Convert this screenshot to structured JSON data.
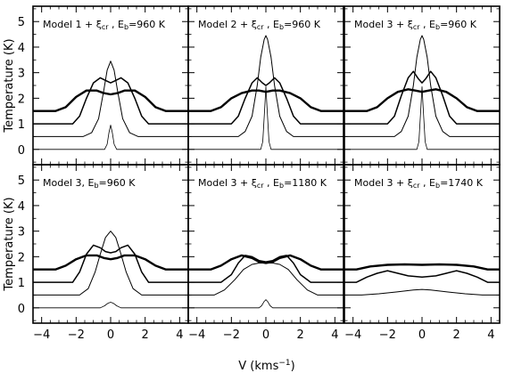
{
  "chart_data": {
    "type": "line",
    "layout": "2x3 grid, shared axes",
    "xlabel": "V (kms",
    "xlabel_sup": "−1",
    "xlabel_end": ")",
    "ylabel": "Temperature (K)",
    "xlim": [
      -4.5,
      4.5
    ],
    "ylim": [
      -0.6,
      5.6
    ],
    "xticks": [
      -4,
      -2,
      0,
      2,
      4
    ],
    "yticks": [
      0,
      1,
      2,
      3,
      4,
      5
    ],
    "grid": false,
    "panels": [
      {
        "title": "Model 1 + ξ",
        "title_sub": "cr",
        "title_end": " , E",
        "title_sub2": "b",
        "title_tail": "=960 K",
        "series": [
          {
            "line": "thin",
            "x": [
              -4.5,
              -1.6,
              -1.1,
              -0.7,
              -0.4,
              -0.2,
              0,
              0.2,
              0.4,
              0.7,
              1.1,
              1.6,
              4.5
            ],
            "y": [
              0.5,
              0.5,
              0.65,
              1.2,
              2.3,
              3.1,
              3.45,
              3.1,
              2.3,
              1.2,
              0.65,
              0.5,
              0.5
            ]
          },
          {
            "line": "medium",
            "x": [
              -4.5,
              -2.2,
              -1.8,
              -1.4,
              -1.0,
              -0.6,
              -0.3,
              0,
              0.3,
              0.6,
              1.0,
              1.4,
              1.8,
              2.2,
              4.5
            ],
            "y": [
              1.0,
              1.0,
              1.3,
              2.0,
              2.6,
              2.8,
              2.7,
              2.6,
              2.7,
              2.8,
              2.6,
              2.0,
              1.3,
              1.0,
              1.0
            ]
          },
          {
            "line": "thick",
            "x": [
              -4.5,
              -3.2,
              -2.6,
              -2.0,
              -1.4,
              -0.8,
              -0.4,
              0,
              0.4,
              0.8,
              1.4,
              2.0,
              2.6,
              3.2,
              4.5
            ],
            "y": [
              1.5,
              1.5,
              1.65,
              2.05,
              2.3,
              2.3,
              2.2,
              2.15,
              2.2,
              2.3,
              2.3,
              2.05,
              1.65,
              1.5,
              1.5
            ]
          },
          {
            "line": "hair",
            "x": [
              -4.5,
              -0.35,
              -0.2,
              -0.1,
              0,
              0.1,
              0.2,
              0.35,
              4.5
            ],
            "y": [
              0,
              0,
              0.2,
              0.65,
              0.95,
              0.65,
              0.2,
              0,
              0
            ]
          }
        ]
      },
      {
        "title": "Model 2 + ξ",
        "title_sub": "cr",
        "title_end": " , E",
        "title_sub2": "b",
        "title_tail": "=960 K",
        "series": [
          {
            "line": "thin",
            "x": [
              -4.5,
              -1.6,
              -1.2,
              -0.8,
              -0.5,
              -0.3,
              -0.1,
              0,
              0.1,
              0.3,
              0.5,
              0.8,
              1.2,
              1.6,
              4.5
            ],
            "y": [
              0.5,
              0.5,
              0.7,
              1.3,
              2.5,
              3.6,
              4.3,
              4.45,
              4.3,
              3.6,
              2.5,
              1.3,
              0.7,
              0.5,
              0.5
            ]
          },
          {
            "line": "medium",
            "x": [
              -4.5,
              -2.0,
              -1.6,
              -1.2,
              -0.8,
              -0.5,
              -0.2,
              0,
              0.2,
              0.5,
              0.8,
              1.2,
              1.6,
              2.0,
              4.5
            ],
            "y": [
              1.0,
              1.0,
              1.3,
              2.0,
              2.6,
              2.8,
              2.6,
              2.5,
              2.6,
              2.8,
              2.6,
              2.0,
              1.3,
              1.0,
              1.0
            ]
          },
          {
            "line": "thick",
            "x": [
              -4.5,
              -3.2,
              -2.6,
              -2.0,
              -1.4,
              -0.8,
              -0.4,
              0,
              0.4,
              0.8,
              1.4,
              2.0,
              2.6,
              3.2,
              4.5
            ],
            "y": [
              1.5,
              1.5,
              1.65,
              2.0,
              2.2,
              2.3,
              2.3,
              2.25,
              2.3,
              2.3,
              2.2,
              2.0,
              1.65,
              1.5,
              1.5
            ]
          },
          {
            "line": "hair",
            "x": [
              -4.5,
              -0.3,
              -0.18,
              -0.08,
              0,
              0.08,
              0.18,
              0.3,
              4.5
            ],
            "y": [
              0,
              0,
              0.3,
              1.5,
              2.45,
              1.5,
              0.3,
              0,
              0
            ]
          }
        ]
      },
      {
        "title": "Model 3 + ξ",
        "title_sub": "cr",
        "title_end": " , E",
        "title_sub2": "b",
        "title_tail": "=960 K",
        "series": [
          {
            "line": "thin",
            "x": [
              -4.5,
              -1.6,
              -1.2,
              -0.8,
              -0.5,
              -0.3,
              -0.1,
              0,
              0.1,
              0.3,
              0.5,
              0.8,
              1.2,
              1.6,
              4.5
            ],
            "y": [
              0.5,
              0.5,
              0.7,
              1.3,
              2.5,
              3.6,
              4.3,
              4.45,
              4.3,
              3.6,
              2.5,
              1.3,
              0.7,
              0.5,
              0.5
            ]
          },
          {
            "line": "medium",
            "x": [
              -4.5,
              -2.0,
              -1.6,
              -1.2,
              -0.8,
              -0.5,
              -0.2,
              0,
              0.2,
              0.5,
              0.8,
              1.2,
              1.6,
              2.0,
              4.5
            ],
            "y": [
              1.0,
              1.0,
              1.3,
              2.1,
              2.8,
              3.05,
              2.75,
              2.6,
              2.75,
              3.05,
              2.8,
              2.1,
              1.3,
              1.0,
              1.0
            ]
          },
          {
            "line": "thick",
            "x": [
              -4.5,
              -3.2,
              -2.6,
              -2.0,
              -1.4,
              -0.8,
              -0.4,
              0,
              0.4,
              0.8,
              1.4,
              2.0,
              2.6,
              3.2,
              4.5
            ],
            "y": [
              1.5,
              1.5,
              1.65,
              2.0,
              2.25,
              2.35,
              2.3,
              2.25,
              2.3,
              2.35,
              2.25,
              2.0,
              1.65,
              1.5,
              1.5
            ]
          },
          {
            "line": "hair",
            "x": [
              -4.5,
              -0.3,
              -0.18,
              -0.08,
              0,
              0.08,
              0.18,
              0.3,
              4.5
            ],
            "y": [
              0,
              0,
              0.3,
              1.5,
              2.45,
              1.5,
              0.3,
              0,
              0
            ]
          }
        ]
      },
      {
        "title": "Model 3, E",
        "title_sub": "",
        "title_end": "",
        "title_sub2": "b",
        "title_tail": "=960 K",
        "series": [
          {
            "line": "thin",
            "x": [
              -4.5,
              -1.8,
              -1.3,
              -0.9,
              -0.6,
              -0.3,
              0,
              0.3,
              0.6,
              0.9,
              1.3,
              1.8,
              4.5
            ],
            "y": [
              0.5,
              0.5,
              0.75,
              1.4,
              2.1,
              2.75,
              3.0,
              2.75,
              2.1,
              1.4,
              0.75,
              0.5,
              0.5
            ]
          },
          {
            "line": "medium",
            "x": [
              -4.5,
              -2.2,
              -1.8,
              -1.4,
              -1.0,
              -0.6,
              -0.3,
              0,
              0.3,
              0.6,
              1.0,
              1.4,
              1.8,
              2.2,
              4.5
            ],
            "y": [
              1.0,
              1.0,
              1.4,
              2.1,
              2.45,
              2.35,
              2.2,
              2.15,
              2.2,
              2.35,
              2.45,
              2.1,
              1.4,
              1.0,
              1.0
            ]
          },
          {
            "line": "thick",
            "x": [
              -4.5,
              -3.2,
              -2.6,
              -2.0,
              -1.4,
              -0.8,
              -0.4,
              0,
              0.4,
              0.8,
              1.4,
              2.0,
              2.6,
              3.2,
              4.5
            ],
            "y": [
              1.5,
              1.5,
              1.65,
              1.9,
              2.05,
              2.05,
              1.95,
              1.9,
              1.95,
              2.05,
              2.05,
              1.9,
              1.65,
              1.5,
              1.5
            ]
          },
          {
            "line": "hair",
            "x": [
              -4.5,
              -0.6,
              -0.35,
              -0.15,
              0,
              0.15,
              0.35,
              0.6,
              4.5
            ],
            "y": [
              0,
              0,
              0.08,
              0.18,
              0.22,
              0.18,
              0.08,
              0,
              0
            ]
          }
        ]
      },
      {
        "title": "Model 3 + ξ",
        "title_sub": "cr",
        "title_end": " , E",
        "title_sub2": "b",
        "title_tail": "=1180 K",
        "series": [
          {
            "line": "thin",
            "x": [
              -4.5,
              -3.0,
              -2.4,
              -1.8,
              -1.3,
              -0.8,
              -0.4,
              0,
              0.4,
              0.8,
              1.3,
              1.8,
              2.4,
              3.0,
              4.5
            ],
            "y": [
              0.5,
              0.5,
              0.7,
              1.1,
              1.5,
              1.7,
              1.75,
              1.75,
              1.75,
              1.7,
              1.5,
              1.1,
              0.7,
              0.5,
              0.5
            ]
          },
          {
            "line": "medium",
            "x": [
              -4.5,
              -2.6,
              -2.0,
              -1.6,
              -1.2,
              -0.8,
              -0.4,
              0,
              0.4,
              0.8,
              1.2,
              1.6,
              2.0,
              2.6,
              4.5
            ],
            "y": [
              1.0,
              1.0,
              1.3,
              1.75,
              2.05,
              2.0,
              1.85,
              1.8,
              1.85,
              2.0,
              2.05,
              1.75,
              1.3,
              1.0,
              1.0
            ]
          },
          {
            "line": "thick",
            "x": [
              -4.5,
              -3.2,
              -2.6,
              -2.0,
              -1.4,
              -0.8,
              -0.4,
              0,
              0.4,
              0.8,
              1.4,
              2.0,
              2.6,
              3.2,
              4.5
            ],
            "y": [
              1.5,
              1.5,
              1.65,
              1.9,
              2.05,
              1.95,
              1.8,
              1.75,
              1.8,
              1.95,
              2.05,
              1.9,
              1.65,
              1.5,
              1.5
            ]
          },
          {
            "line": "hair",
            "x": [
              -4.5,
              -0.4,
              -0.25,
              -0.1,
              0,
              0.1,
              0.25,
              0.4,
              4.5
            ],
            "y": [
              0,
              0,
              0.08,
              0.25,
              0.32,
              0.25,
              0.08,
              0,
              0
            ]
          }
        ]
      },
      {
        "title": "Model 3 + ξ",
        "title_sub": "cr",
        "title_end": " , E",
        "title_sub2": "b",
        "title_tail": "=1740 K",
        "series": [
          {
            "line": "thin",
            "x": [
              -4.5,
              -3.5,
              -2.5,
              -1.5,
              -0.5,
              0,
              0.5,
              1.5,
              2.5,
              3.5,
              4.5
            ],
            "y": [
              0.5,
              0.5,
              0.55,
              0.62,
              0.7,
              0.72,
              0.7,
              0.62,
              0.55,
              0.5,
              0.5
            ]
          },
          {
            "line": "medium",
            "x": [
              -4.5,
              -3.8,
              -3.2,
              -2.6,
              -2.0,
              -1.4,
              -0.8,
              0,
              0.8,
              1.4,
              2.0,
              2.6,
              3.2,
              3.8,
              4.5
            ],
            "y": [
              1.0,
              1.0,
              1.2,
              1.35,
              1.45,
              1.35,
              1.25,
              1.2,
              1.25,
              1.35,
              1.45,
              1.35,
              1.2,
              1.0,
              1.0
            ]
          },
          {
            "line": "thick",
            "x": [
              -4.5,
              -3.8,
              -3.0,
              -2.0,
              -1.0,
              0,
              1.0,
              2.0,
              3.0,
              3.8,
              4.5
            ],
            "y": [
              1.5,
              1.5,
              1.62,
              1.68,
              1.7,
              1.68,
              1.7,
              1.68,
              1.62,
              1.5,
              1.5
            ]
          }
        ]
      }
    ]
  }
}
